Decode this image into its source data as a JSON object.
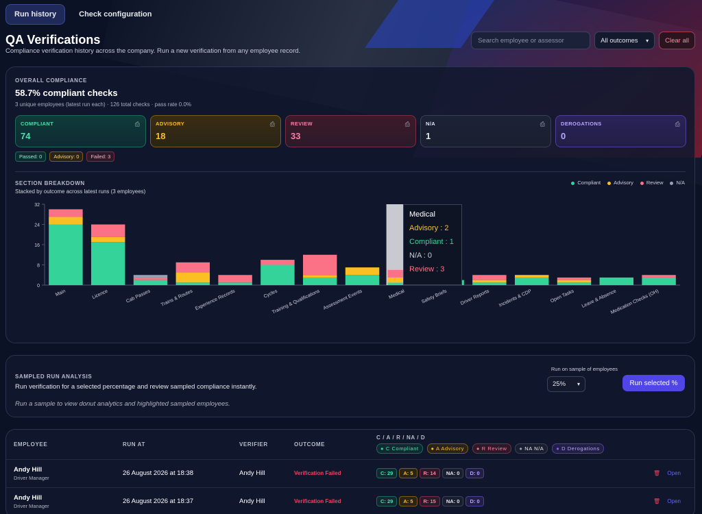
{
  "tabs": [
    {
      "label": "Run history",
      "active": true
    },
    {
      "label": "Check configuration",
      "active": false
    }
  ],
  "header": {
    "title": "QA Verifications",
    "subtitle": "Compliance verification history across the company. Run a new verification from any employee record."
  },
  "filters": {
    "search_placeholder": "Search employee or assessor",
    "outcome_select": "All outcomes",
    "clear_label": "Clear all"
  },
  "overall": {
    "section_label": "OVERALL COMPLIANCE",
    "headline": "58.7% compliant checks",
    "summary": "3 unique employees (latest run each) · 126 total checks · pass rate 0.0%",
    "stats": [
      {
        "key": "c",
        "label": "COMPLIANT",
        "value": "74"
      },
      {
        "key": "a",
        "label": "ADVISORY",
        "value": "18"
      },
      {
        "key": "r",
        "label": "REVIEW",
        "value": "33"
      },
      {
        "key": "n",
        "label": "N/A",
        "value": "1"
      },
      {
        "key": "d",
        "label": "DEROGATIONS",
        "value": "0"
      }
    ],
    "chips": [
      {
        "key": "c",
        "label": "Passed: 0"
      },
      {
        "key": "a",
        "label": "Advisory: 0"
      },
      {
        "key": "r",
        "label": "Failed: 3"
      }
    ]
  },
  "breakdown": {
    "section_label": "SECTION BREAKDOWN",
    "subtitle": "Stacked by outcome across latest runs (3 employees)",
    "tooltip": {
      "title": "Medical",
      "lines": [
        {
          "key": "a",
          "text": "Advisory : 2"
        },
        {
          "key": "c",
          "text": "Compliant : 1"
        },
        {
          "key": "n",
          "text": "N/A : 0"
        },
        {
          "key": "r",
          "text": "Review : 3"
        }
      ]
    }
  },
  "chart_data": {
    "type": "bar",
    "stacked": true,
    "categories": [
      "Main",
      "Licence",
      "Cab Passes",
      "Trains & Routes",
      "Experience Records",
      "Cycles",
      "Training & Qualifications",
      "Assessment Events",
      "Medical",
      "Safety Briefs",
      "Driver Reports",
      "Incidents & CDP",
      "Open Tasks",
      "Leave & Absence",
      "Medication Checks (OH)"
    ],
    "series": [
      {
        "name": "Compliant",
        "color": "#34d399",
        "values": [
          24,
          17,
          2,
          1,
          1,
          8,
          3,
          4,
          1,
          2,
          1,
          3,
          1,
          3,
          3
        ]
      },
      {
        "name": "Advisory",
        "color": "#fbbf24",
        "values": [
          3,
          2,
          0,
          4,
          0,
          0,
          1,
          3,
          2,
          0,
          1,
          1,
          1,
          0,
          0
        ]
      },
      {
        "name": "Review",
        "color": "#fb7185",
        "values": [
          3,
          5,
          1,
          4,
          3,
          2,
          8,
          0,
          3,
          0,
          2,
          0,
          1,
          0,
          1
        ]
      },
      {
        "name": "N/A",
        "color": "#94a3b8",
        "values": [
          0,
          0,
          1,
          0,
          0,
          0,
          0,
          0,
          0,
          0,
          0,
          0,
          0,
          0,
          0
        ]
      }
    ],
    "ylim": [
      0,
      32
    ],
    "yticks": [
      0,
      8,
      16,
      24,
      32
    ],
    "highlight_category": "Medical",
    "legend": "top-right"
  },
  "sampled": {
    "section_label": "SAMPLED RUN ANALYSIS",
    "description": "Run verification for a selected percentage and review sampled compliance instantly.",
    "hint": "Run a sample to view donut analytics and highlighted sampled employees.",
    "sample_label": "Run on sample of employees",
    "sample_value": "25%",
    "run_label": "Run selected %"
  },
  "table": {
    "headers": [
      "EMPLOYEE",
      "RUN AT",
      "VERIFIER",
      "OUTCOME",
      "C / A / R / NA / D"
    ],
    "legend": [
      {
        "key": "c",
        "label": "C Compliant"
      },
      {
        "key": "a",
        "label": "A Advisory"
      },
      {
        "key": "r",
        "label": "R Review"
      },
      {
        "key": "n",
        "label": "NA N/A"
      },
      {
        "key": "d",
        "label": "D Derogations"
      }
    ],
    "rows": [
      {
        "name": "Andy Hill",
        "role": "Driver Manager",
        "run_at": "26 August 2026 at 18:38",
        "verifier": "Andy Hill",
        "outcome": "Verification Failed",
        "c": "C: 29",
        "a": "A: 5",
        "r": "R: 14",
        "na": "NA: 0",
        "d": "D: 0",
        "open": "Open"
      },
      {
        "name": "Andy Hill",
        "role": "Driver Manager",
        "run_at": "26 August 2026 at 18:37",
        "verifier": "Andy Hill",
        "outcome": "Verification Failed",
        "c": "C: 29",
        "a": "A: 5",
        "r": "R: 15",
        "na": "NA: 0",
        "d": "D: 0",
        "open": "Open"
      }
    ]
  },
  "colors": {
    "compliant": "#34d399",
    "advisory": "#fbbf24",
    "review": "#fb7185",
    "na": "#94a3b8",
    "derogation": "#8b5cf6",
    "accent": "#4f46e5"
  }
}
